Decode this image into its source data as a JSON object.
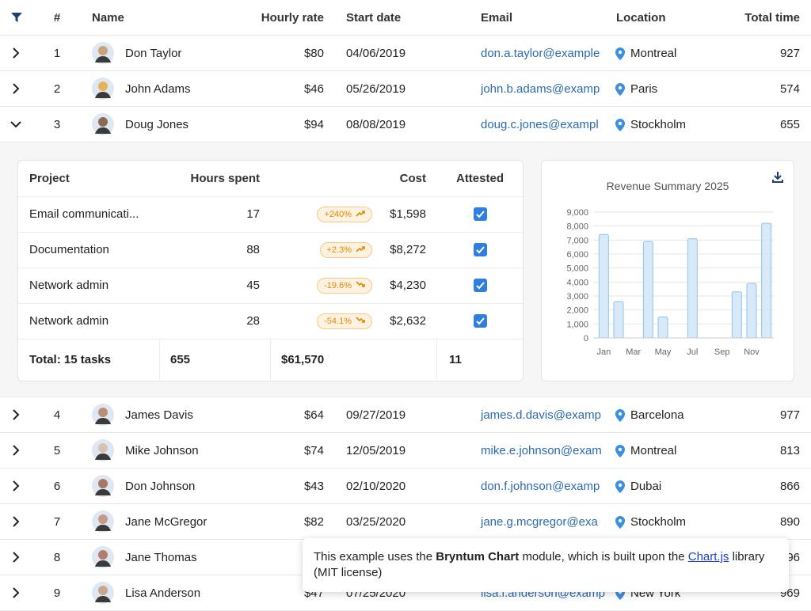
{
  "grid": {
    "columns": [
      "#",
      "Name",
      "Hourly rate",
      "Start date",
      "Email",
      "Location",
      "Total time"
    ],
    "rows": [
      {
        "num": 1,
        "name": "Don Taylor",
        "rate": "$80",
        "start": "04/06/2019",
        "email": "don.a.taylor@example",
        "location": "Montreal",
        "total": 927
      },
      {
        "num": 2,
        "name": "John Adams",
        "rate": "$46",
        "start": "05/26/2019",
        "email": "john.b.adams@examp",
        "location": "Paris",
        "total": 574
      },
      {
        "num": 3,
        "name": "Doug Jones",
        "rate": "$94",
        "start": "08/08/2019",
        "email": "doug.c.jones@exampl",
        "location": "Stockholm",
        "total": 655,
        "expanded": true
      },
      {
        "num": 4,
        "name": "James Davis",
        "rate": "$64",
        "start": "09/27/2019",
        "email": "james.d.davis@examp",
        "location": "Barcelona",
        "total": 977
      },
      {
        "num": 5,
        "name": "Mike Johnson",
        "rate": "$74",
        "start": "12/05/2019",
        "email": "mike.e.johnson@exam",
        "location": "Montreal",
        "total": 813
      },
      {
        "num": 6,
        "name": "Don Johnson",
        "rate": "$43",
        "start": "02/10/2020",
        "email": "don.f.johnson@examp",
        "location": "Dubai",
        "total": 866
      },
      {
        "num": 7,
        "name": "Jane McGregor",
        "rate": "$82",
        "start": "03/25/2020",
        "email": "jane.g.mcgregor@exa",
        "location": "Stockholm",
        "total": 890
      },
      {
        "num": 8,
        "name": "Jane Thomas",
        "total": 96
      },
      {
        "num": 9,
        "name": "Lisa Anderson",
        "rate": "$47",
        "start": "07/25/2020",
        "email": "lisa.i.anderson@examp",
        "location": "New York",
        "total": 969
      }
    ]
  },
  "detail": {
    "columns": [
      "Project",
      "Hours spent",
      "Cost",
      "Attested"
    ],
    "rows": [
      {
        "project": "Email communicati...",
        "hours": 17,
        "trend": "+240%",
        "trend_direction": "up",
        "cost": "$1,598",
        "attested": true
      },
      {
        "project": "Documentation",
        "hours": 88,
        "trend": "+2.3%",
        "trend_direction": "up",
        "cost": "$8,272",
        "attested": true
      },
      {
        "project": "Network admin",
        "hours": 45,
        "trend": "-19.6%",
        "trend_direction": "down",
        "cost": "$4,230",
        "attested": true
      },
      {
        "project": "Network admin",
        "hours": 28,
        "trend": "-54.1%",
        "trend_direction": "down",
        "cost": "$2,632",
        "attested": true
      }
    ],
    "footer": [
      "Total: 15 tasks",
      "655",
      "$61,570",
      "11"
    ]
  },
  "chart_data": {
    "type": "bar",
    "title": "Revenue Summary 2025",
    "categories": [
      "Jan",
      null,
      "Mar",
      null,
      "May",
      null,
      "Jul",
      null,
      "Sep",
      null,
      "Nov",
      null
    ],
    "values": [
      7400,
      2600,
      0,
      6900,
      1500,
      0,
      7100,
      0,
      0,
      3300,
      3900,
      8200
    ],
    "color": "#d8e9fa",
    "border_color": "#8fc2ef",
    "ylim": [
      0,
      9000
    ],
    "yticks": [
      0,
      {
        "value": 1000,
        "label": "1,000"
      },
      {
        "value": 2000,
        "label": "2,000"
      },
      {
        "value": 3000,
        "label": "3,000"
      },
      {
        "value": 4000,
        "label": "4,000"
      },
      {
        "value": 5000,
        "label": "5,000"
      },
      {
        "value": 6000,
        "label": "6,000"
      },
      {
        "value": 7000,
        "label": "7,000"
      },
      {
        "value": 8000,
        "label": "8,000"
      },
      {
        "value": 9000,
        "label": "9,000"
      }
    ],
    "grid": true
  },
  "notice": {
    "before": "This example uses the",
    "bold": "Bryntum Chart",
    "middle": "module, which is built upon the",
    "link": "Chart.js",
    "after": "library (MIT license)"
  }
}
